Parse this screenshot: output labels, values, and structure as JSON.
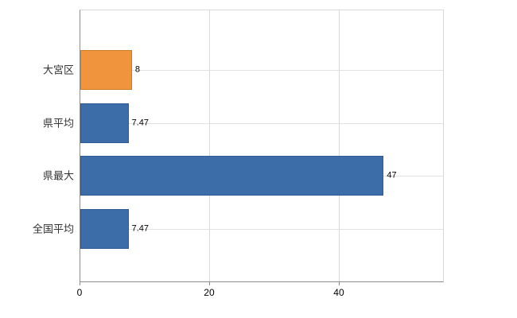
{
  "chart_data": {
    "type": "bar",
    "orientation": "horizontal",
    "title": "",
    "xlabel": "",
    "ylabel": "",
    "categories": [
      "大宮区",
      "県平均",
      "県最大",
      "全国平均"
    ],
    "values": [
      8,
      7.47,
      47,
      7.47
    ],
    "value_labels": [
      "8",
      "7.47",
      "47",
      "7.47"
    ],
    "bar_colors": [
      "#f0943e",
      "#3d6da8",
      "#3d6da8",
      "#3d6da8"
    ],
    "bar_border_colors": [
      "#cc7a22",
      "#2f5a92",
      "#2f5a92",
      "#2f5a92"
    ],
    "xlim": [
      0,
      56.2
    ],
    "xticks": [
      0,
      20,
      40
    ],
    "xtick_labels": [
      "0",
      "20",
      "40"
    ],
    "grid": true,
    "legend": false
  },
  "style": {
    "grid_color": "#d9d9d9",
    "axis_color": "#8c8c8c",
    "category_label_color": "#333333",
    "value_label_color": "#000000",
    "background": "#ffffff"
  }
}
